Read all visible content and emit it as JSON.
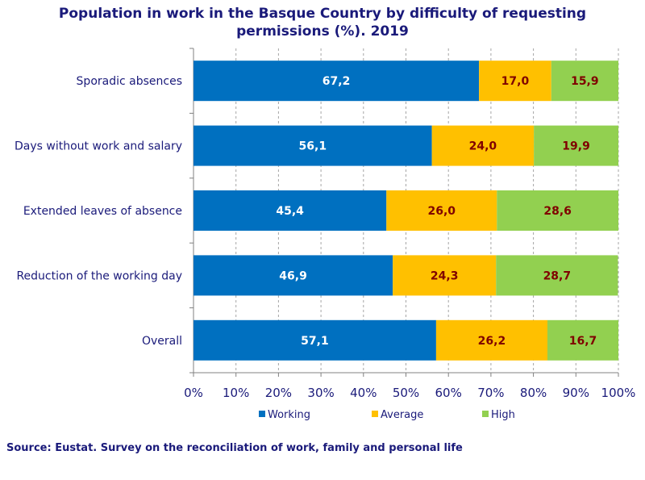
{
  "title_lines": [
    "Population  in work in the Basque Country by difficulty  of requesting",
    "permissions  (%). 2019"
  ],
  "source": "Source: Eustat. Survey on the reconciliation of work, family and personal life",
  "colors": {
    "working": "#0070c0",
    "average": "#ffc000",
    "high": "#92d050",
    "label_working": "#ffffff",
    "label_other": "#7f0000",
    "grid": "#a6a6a6",
    "text": "#1a1a7a"
  },
  "chart_data": {
    "type": "bar",
    "orientation": "horizontal",
    "stacked": true,
    "title": "Population  in work in the Basque Country by difficulty  of requesting permissions  (%). 2019",
    "categories": [
      "Sporadic absences",
      "Days without work and salary",
      "Extended leaves of absence",
      "Reduction of the working day",
      "Overall"
    ],
    "series": [
      {
        "name": "Working",
        "values": [
          67.2,
          56.1,
          45.4,
          46.9,
          57.1
        ],
        "labels": [
          "67,2",
          "56,1",
          "45,4",
          "46,9",
          "57,1"
        ]
      },
      {
        "name": "Average",
        "values": [
          17.0,
          24.0,
          26.0,
          24.3,
          26.2
        ],
        "labels": [
          "17,0",
          "24,0",
          "26,0",
          "24,3",
          "26,2"
        ]
      },
      {
        "name": "High",
        "values": [
          15.9,
          19.9,
          28.6,
          28.7,
          16.7
        ],
        "labels": [
          "15,9",
          "19,9",
          "28,6",
          "28,7",
          "16,7"
        ]
      }
    ],
    "xlim": [
      0,
      100
    ],
    "xticks": [
      "0%",
      "10%",
      "20%",
      "30%",
      "40%",
      "50%",
      "60%",
      "70%",
      "80%",
      "90%",
      "100%"
    ],
    "xlabel": "",
    "ylabel": "",
    "grid": "vertical dashed",
    "legend": "bottom"
  }
}
